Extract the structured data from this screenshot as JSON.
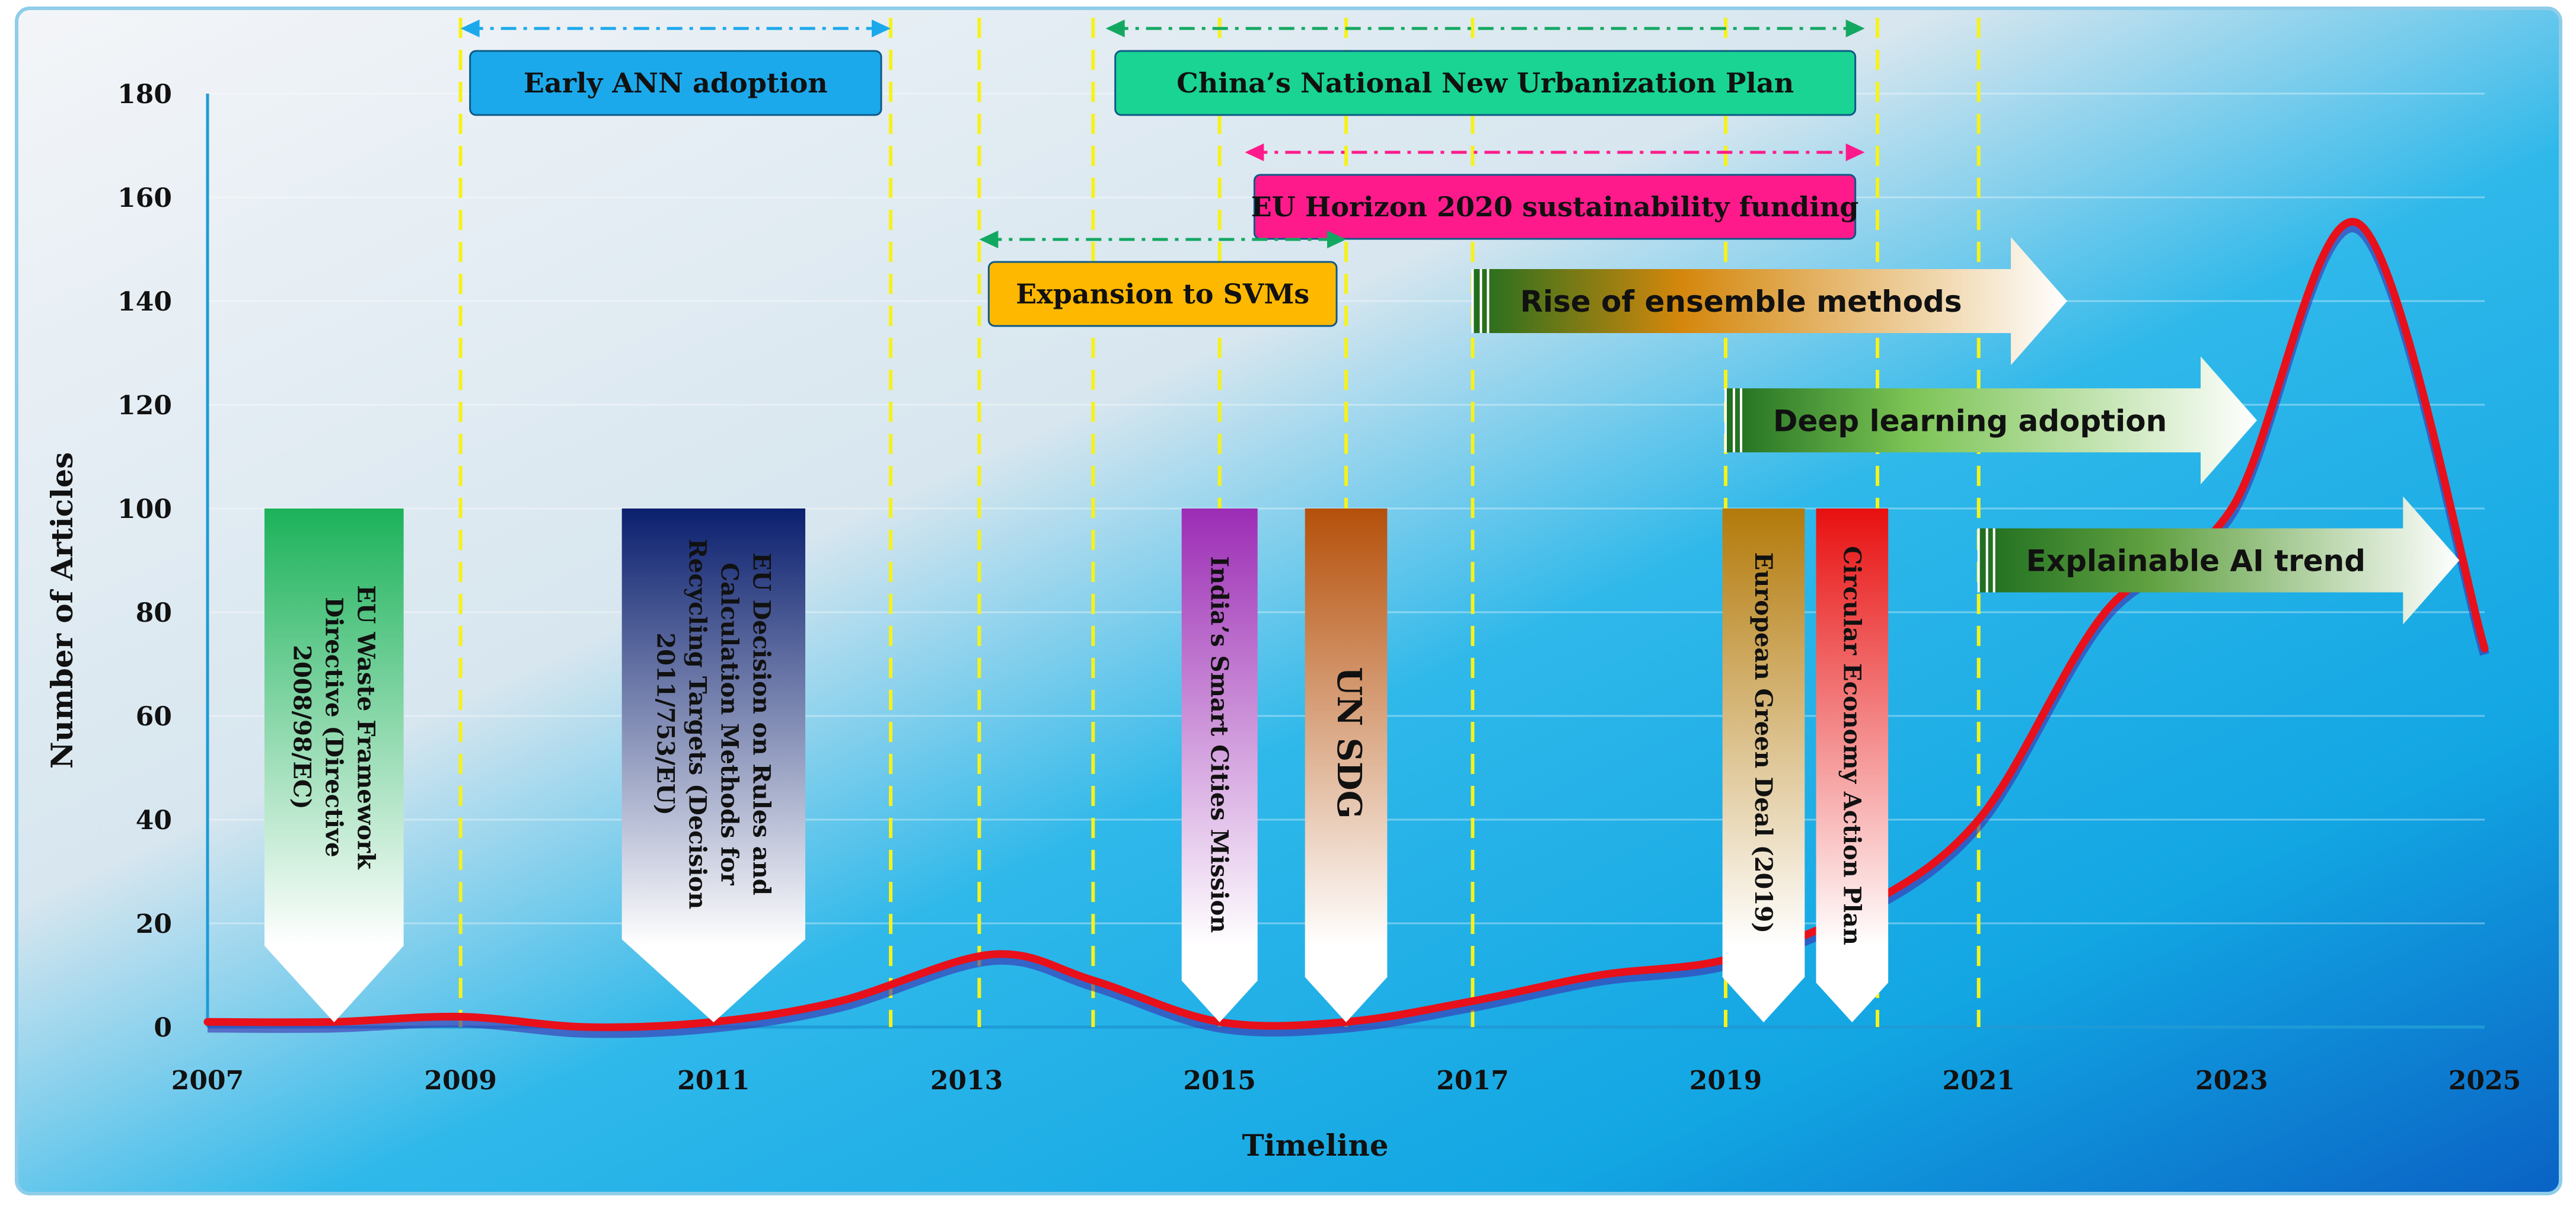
{
  "chart_data": {
    "type": "line",
    "xlabel": "Timeline",
    "ylabel": "Number of Articles",
    "xlim": [
      2007,
      2025
    ],
    "ylim": [
      0,
      180
    ],
    "x_ticks": [
      "2007",
      "2009",
      "2011",
      "2013",
      "2015",
      "2017",
      "2019",
      "2021",
      "2023",
      "2025"
    ],
    "y_ticks": [
      "0",
      "20",
      "40",
      "60",
      "80",
      "100",
      "120",
      "140",
      "160",
      "180"
    ],
    "grid": true,
    "series": [
      {
        "color": "#e8101a",
        "x": [
          2007,
          2008,
          2009,
          2010,
          2011,
          2012,
          2013.2,
          2014,
          2015,
          2016,
          2017,
          2018,
          2019,
          2020,
          2021,
          2022,
          2023,
          2024,
          2025
        ],
        "y": [
          1,
          1,
          2,
          0,
          1,
          5,
          14,
          9,
          1,
          1,
          5,
          10,
          13,
          22,
          40,
          80,
          100,
          155,
          73
        ]
      }
    ],
    "event_lines_x": [
      2009,
      2012.4,
      2013.1,
      2014,
      2015,
      2016,
      2017,
      2019,
      2020.2,
      2021
    ]
  },
  "periods": [
    {
      "label": "Early ANN adoption",
      "start": 2009,
      "end": 2012.4,
      "level": 0,
      "fill": "#1ca9ec",
      "arrow_color": "#1ca9ec"
    },
    {
      "label": "China’s National New Urbanization Plan",
      "start": 2014.1,
      "end": 2020.1,
      "level": 0,
      "fill": "#19d492",
      "arrow_color": "#13a862"
    },
    {
      "label": "EU Horizon 2020 sustainability funding",
      "start": 2015.2,
      "end": 2020.1,
      "level": 1,
      "fill": "#ff1a8c",
      "arrow_color": "#ff1a8c"
    },
    {
      "label": "Expansion to SVMs",
      "start": 2013.1,
      "end": 2016,
      "level": 2,
      "fill": "#ffb800",
      "arrow_color": "#13a862"
    }
  ],
  "trend_arrows": [
    {
      "label": "Rise of ensemble methods",
      "start": 2017,
      "end": 2021.7,
      "y": 140,
      "from": "#1f6e1f",
      "mid": "#d4870c"
    },
    {
      "label": "Deep learning adoption",
      "start": 2019,
      "end": 2023.2,
      "y": 117,
      "from": "#1f6e1f",
      "mid": "#7cc455"
    },
    {
      "label": "Explainable  AI trend",
      "start": 2021,
      "end": 2024.8,
      "y": 90,
      "from": "#1f6e1f",
      "mid": "#5fa040"
    }
  ],
  "policy_flags": [
    {
      "label_lines": [
        "EU Waste Framework",
        "Directive (Directive",
        "2008/98/EC)"
      ],
      "x": 2008,
      "width_years": 1.1,
      "top_color": "#1cb25a"
    },
    {
      "label_lines": [
        "EU Decision on Rules and",
        "Calculation Methods for",
        "Recycling Targets (Decision",
        "2011/753/EU)"
      ],
      "x": 2011,
      "width_years": 1.45,
      "top_color": "#0a1f6e"
    },
    {
      "label_lines": [
        "India’s Smart Cities Mission"
      ],
      "x": 2015,
      "width_years": 0.6,
      "top_color": "#9c2cb5"
    },
    {
      "label_lines": [
        "UN SDG"
      ],
      "x": 2016,
      "width_years": 0.65,
      "top_color": "#b5500a"
    },
    {
      "label_lines": [
        "European Green Deal (2019)"
      ],
      "x": 2019.3,
      "width_years": 0.65,
      "top_color": "#b37a0a"
    },
    {
      "label_lines": [
        "Circular Economy Action Plan"
      ],
      "x": 2020,
      "width_years": 0.57,
      "top_color": "#e81010"
    }
  ]
}
